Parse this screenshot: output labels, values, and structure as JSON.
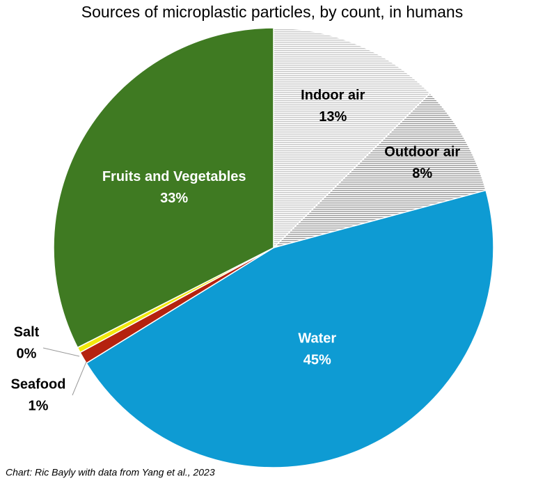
{
  "chart_data": {
    "type": "pie",
    "title": "Sources of microplastic particles, by count, in humans",
    "source": "Chart: Ric Bayly with data from Yang et al., 2023",
    "categories": [
      "Indoor air",
      "Outdoor air",
      "Water",
      "Seafood",
      "Salt",
      "Fruits and Vegetables"
    ],
    "values": [
      12.6,
      8.2,
      45.4,
      0.9,
      0.4,
      32.5
    ],
    "value_labels": [
      "13%",
      "8%",
      "45%",
      "1%",
      "0%",
      "33%"
    ],
    "colors": [
      "#c8c8c8",
      "#9a9a9a",
      "#0e9bd3",
      "#b5220f",
      "#f2e80c",
      "#3f7a22"
    ],
    "hatched": [
      true,
      true,
      false,
      false,
      false,
      false
    ]
  }
}
